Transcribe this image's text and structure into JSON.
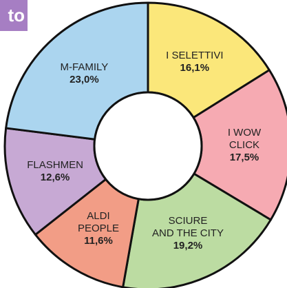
{
  "tag": "to",
  "chart_data": {
    "type": "donut",
    "categories": [
      "I SELETTIVI",
      "I WOW\nCLICK",
      "SCIURE\nAND THE CITY",
      "ALDI\nPEOPLE",
      "FLASHMEN",
      "M-FAMILY"
    ],
    "values": [
      16.1,
      17.5,
      19.2,
      11.6,
      12.6,
      23.0
    ],
    "value_labels": [
      "16,1%",
      "17,5%",
      "19,2%",
      "11,6%",
      "12,6%",
      "23,0%"
    ],
    "colors": [
      "#fbe77a",
      "#f6aab2",
      "#bcdca2",
      "#f29d86",
      "#c7a9d4",
      "#abd5ef"
    ]
  }
}
